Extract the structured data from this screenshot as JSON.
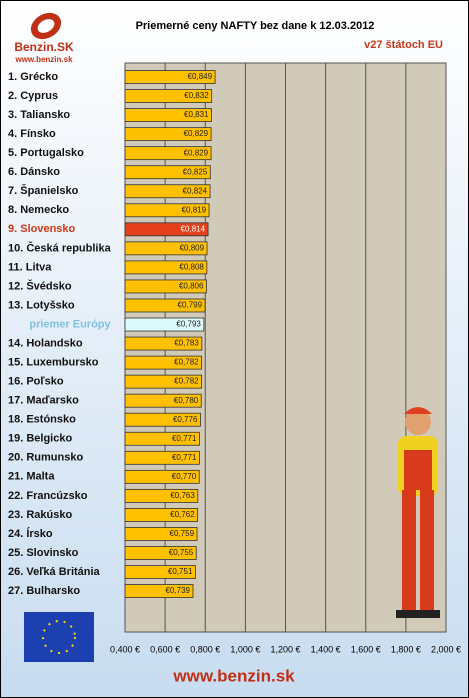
{
  "logo": {
    "name": "Benzin.SK",
    "url": "www.benzin.sk"
  },
  "footer": "www.benzin.sk",
  "chart_data": {
    "type": "barh",
    "title": "Priemerné ceny NAFTY bez dane k 12.03.2012",
    "subtitle": "v27 štátoch EU",
    "categories": [
      "1. Grécko",
      "2. Cyprus",
      "3. Taliansko",
      "4. Fínsko",
      "5. Portugalsko",
      "6. Dánsko",
      "7. Španielsko",
      "8. Nemecko",
      "9. Slovensko",
      "10. Česká republika",
      "11. Litva",
      "12. Švédsko",
      "13. Lotyšsko",
      "priemer Európy",
      "14. Holandsko",
      "15. Luxembursko",
      "16. Poľsko",
      "17. Maďarsko",
      "18. Estónsko",
      "19. Belgicko",
      "20. Rumunsko",
      "21. Malta",
      "22. Francúzsko",
      "23. Rakúsko",
      "24. Írsko",
      "25. Slovinsko",
      "26. Veľká Británia",
      "27. Bulharsko"
    ],
    "values": [
      0.849,
      0.832,
      0.831,
      0.829,
      0.829,
      0.825,
      0.824,
      0.819,
      0.814,
      0.809,
      0.808,
      0.806,
      0.799,
      0.793,
      0.783,
      0.782,
      0.782,
      0.78,
      0.776,
      0.771,
      0.771,
      0.77,
      0.763,
      0.762,
      0.759,
      0.755,
      0.751,
      0.739
    ],
    "value_labels": [
      "€0,849",
      "€0,832",
      "€0,831",
      "€0,829",
      "€0,829",
      "€0,825",
      "€0,824",
      "€0,819",
      "€0,814",
      "€0,809",
      "€0,808",
      "€0,806",
      "€0,799",
      "€0,793",
      "€0,783",
      "€0,782",
      "€0,782",
      "€0,780",
      "€0,776",
      "€0,771",
      "€0,771",
      "€0,770",
      "€0,763",
      "€0,762",
      "€0,759",
      "€0,755",
      "€0,751",
      "€0,739"
    ],
    "color": "#ffc000",
    "highlight_category": "9. Slovensko",
    "highlight_color": "#e5401c",
    "average_category": "priemer Európy",
    "average_color": "#dcfafa",
    "xlim": [
      0.4,
      2.0
    ],
    "xticks": [
      {
        "value": 0.4,
        "label": "0,400 €"
      },
      {
        "value": 0.6,
        "label": "0,600 €"
      },
      {
        "value": 0.8,
        "label": "0,800 €"
      },
      {
        "value": 1.0,
        "label": "1,000 €"
      },
      {
        "value": 1.2,
        "label": "1,200 €"
      },
      {
        "value": 1.4,
        "label": "1,400 €"
      },
      {
        "value": 1.6,
        "label": "1,600 €"
      },
      {
        "value": 1.8,
        "label": "1,800 €"
      },
      {
        "value": 2.0,
        "label": "2,000 €"
      }
    ],
    "grid": true
  }
}
